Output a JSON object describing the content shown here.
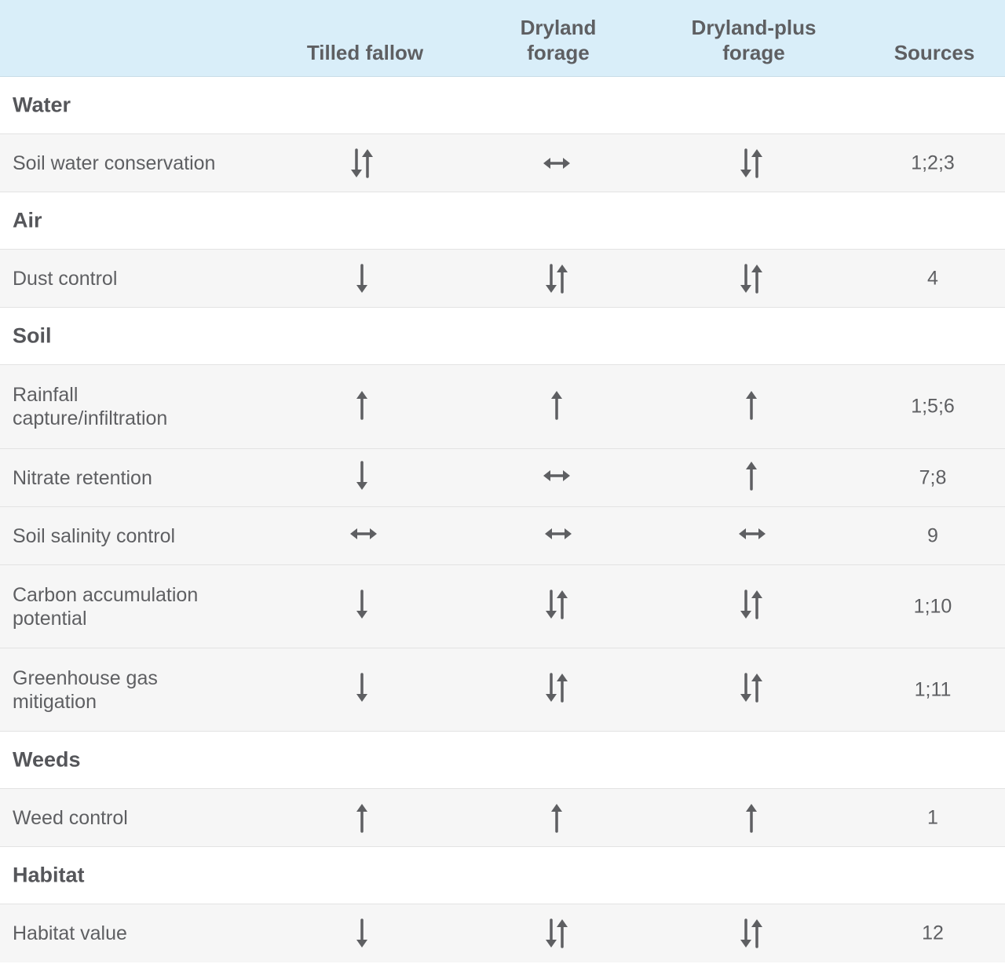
{
  "header": {
    "columns": [
      "Tilled fallow",
      "Dryland\nforage",
      "Dryland-plus\nforage",
      "Sources"
    ]
  },
  "sections": [
    {
      "category": "Water",
      "rows": [
        {
          "label": "Soil water conservation",
          "icons": [
            "both-icon",
            "neutral-icon",
            "both-icon"
          ],
          "sources": "1;2;3"
        }
      ]
    },
    {
      "category": "Air",
      "rows": [
        {
          "label": "Dust control",
          "icons": [
            "down-icon",
            "both-icon",
            "both-icon"
          ],
          "sources": "4"
        }
      ]
    },
    {
      "category": "Soil",
      "rows": [
        {
          "label": "Rainfall capture/infiltration",
          "icons": [
            "up-icon",
            "up-icon",
            "up-icon"
          ],
          "sources": "1;5;6"
        },
        {
          "label": "Nitrate retention",
          "icons": [
            "down-icon",
            "neutral-icon",
            "up-icon"
          ],
          "sources": "7;8"
        },
        {
          "label": "Soil salinity control",
          "icons": [
            "neutral-icon",
            "neutral-icon",
            "neutral-icon"
          ],
          "sources": "9"
        },
        {
          "label": "Carbon accumulation potential",
          "icons": [
            "down-icon",
            "both-icon",
            "both-icon"
          ],
          "sources": "1;10"
        },
        {
          "label": "Greenhouse gas mitigation",
          "icons": [
            "down-icon",
            "both-icon",
            "both-icon"
          ],
          "sources": "1;11"
        }
      ]
    },
    {
      "category": "Weeds",
      "rows": [
        {
          "label": "Weed control",
          "icons": [
            "up-icon",
            "up-icon",
            "up-icon"
          ],
          "sources": "1"
        }
      ]
    },
    {
      "category": "Habitat",
      "rows": [
        {
          "label": "Habitat value",
          "icons": [
            "down-icon",
            "both-icon",
            "both-icon"
          ],
          "sources": "12"
        }
      ]
    }
  ]
}
